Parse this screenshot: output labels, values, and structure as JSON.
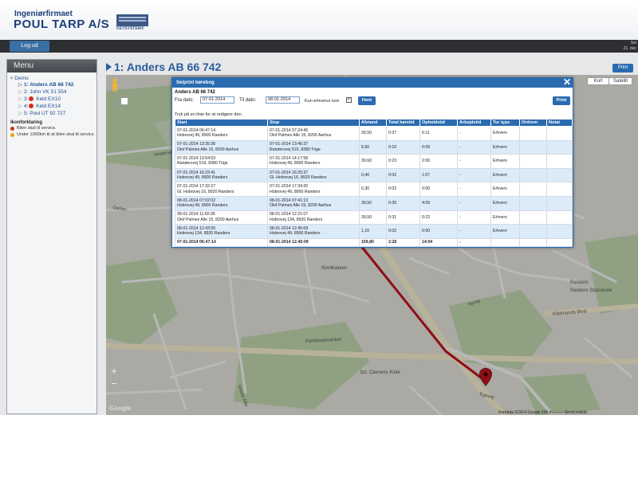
{
  "header": {
    "brand_line1": "Ingeniørfirmaet",
    "brand_line2": "POUL TARP A/S",
    "keysystem_label": "KEYSYSTEM®"
  },
  "topnav": {
    "logout_label": "Log ud",
    "user_line1": "Sel",
    "user_line2": "21. dec"
  },
  "sidebar": {
    "title": "Menu",
    "root_label": "Demo",
    "items": [
      {
        "prefix": "1:",
        "label": "Anders AB 66 742",
        "warning": false
      },
      {
        "prefix": "2:",
        "label": "John VK 51 554",
        "warning": false
      },
      {
        "prefix": "3:",
        "label": "Keld EX10",
        "warning": true
      },
      {
        "prefix": "4:",
        "label": "Keld EX14",
        "warning": true
      },
      {
        "prefix": "5:",
        "label": "Poul UT 92 727",
        "warning": false
      }
    ],
    "legend_title": "Ikonforklaring",
    "legend_items": [
      {
        "label": "Bilen skal til service.",
        "color": "#d52b1e"
      },
      {
        "label": "Under 1000km til at bilen skal til service.",
        "color": "#e3a21a"
      }
    ]
  },
  "page": {
    "title": "1: Anders AB 66 742",
    "print_label": "Print"
  },
  "map": {
    "type_map": "Kort",
    "type_satellite": "Satellit",
    "zoom_in": "+",
    "zoom_out": "−",
    "google_label": "Google",
    "attribution": "Kortdata ©2014 Google   100 m ⸻   Servicevilkår",
    "labels": [
      {
        "text": "Vestervangen"
      },
      {
        "text": "Gørlev"
      },
      {
        "text": "Randers"
      },
      {
        "text": "Nordbakken"
      },
      {
        "text": "Randers Statsskole"
      },
      {
        "text": "Rådmands Blvd."
      },
      {
        "text": "Parkboulevarden"
      },
      {
        "text": "Sct. Clemens Kirke"
      },
      {
        "text": "Langgade"
      },
      {
        "text": "Vester Alle"
      },
      {
        "text": "Nyvej"
      },
      {
        "text": "Egevej"
      }
    ]
  },
  "modal": {
    "title": "Se/print kørebog",
    "close_label": "✕",
    "vehicle": "Anders AB 66 742",
    "from_label": "Fra dato:",
    "from_value": "07-01-2014",
    "to_label": "Til dato:",
    "to_value": "08-01-2014",
    "only_business_label": "Kun erhvervs ture",
    "only_business_checked": "✓",
    "fetch_label": "Hent",
    "print_label": "Print",
    "instruction": "Tryk på en linie for at redigere den.",
    "columns": [
      "Start",
      "Stop",
      "Afstand",
      "Total køretid",
      "Opholdstid",
      "Arbejdstid",
      "Tur type",
      "Ordrenr",
      "Notat"
    ],
    "rows": [
      {
        "start_time": "07-01-2014 06:47:14",
        "start_addr": "Hobrovej 49, 8900 Randers",
        "stop_time": "07-01-2014 07:24:45",
        "stop_addr": "Olof Palmes Alle 15, 8200 Aarhus",
        "distance": "39,50",
        "drive_time": "0:37",
        "stay_time": "6:11",
        "work_time": "-",
        "trip_type": "Erhverv",
        "order_no": "",
        "note": ""
      },
      {
        "start_time": "07-01-2014 13:35:36",
        "start_addr": "Olof Palmes Alle 15, 8200 Aarhus",
        "stop_time": "07-01-2014 13:45:37",
        "stop_addr": "Randersvej 519, 8380 Trige",
        "distance": "8,90",
        "drive_time": "0:10",
        "stay_time": "0:09",
        "work_time": "-",
        "trip_type": "Erhverv",
        "order_no": "",
        "note": ""
      },
      {
        "start_time": "07-01-2014 13:54:53",
        "start_addr": "Randersvej 519, 8380 Trige",
        "stop_time": "07-01-2014 14:17:58",
        "stop_addr": "Hobrovej 49, 8900 Randers",
        "distance": "30,60",
        "drive_time": "0:23",
        "stay_time": "2:06",
        "work_time": "-",
        "trip_type": "Erhverv",
        "order_no": "",
        "note": ""
      },
      {
        "start_time": "07-01-2014 16:23:41",
        "start_addr": "Hobrovej 49, 8900 Randers",
        "stop_time": "07-01-2014 16:25:37",
        "stop_addr": "Gl. Hobrovej 16, 8920 Randers",
        "distance": "0,40",
        "drive_time": "0:02",
        "stay_time": "1:07",
        "work_time": "-",
        "trip_type": "Erhverv",
        "order_no": "",
        "note": ""
      },
      {
        "start_time": "07-01-2014 17:32:27",
        "start_addr": "Gl. Hobrovej 16, 8920 Randers",
        "stop_time": "07-01-2014 17:34:20",
        "stop_addr": "Hobrovej 49, 8900 Randers",
        "distance": "0,30",
        "drive_time": "0:02",
        "stay_time": "0:00",
        "work_time": "-",
        "trip_type": "Erhverv",
        "order_no": "",
        "note": ""
      },
      {
        "start_time": "08-01-2014 07:02:02",
        "start_addr": "Hobrovej 49, 8900 Randers",
        "stop_time": "08-01-2014 07:41:13",
        "stop_addr": "Olof Palmes Alle 15, 8200 Aarhus",
        "distance": "39,50",
        "drive_time": "0:39",
        "stay_time": "4:09",
        "work_time": "-",
        "trip_type": "Erhverv",
        "order_no": "",
        "note": ""
      },
      {
        "start_time": "08-01-2014 11:50:36",
        "start_addr": "Olof Palmes Alle 15, 8200 Aarhus",
        "stop_time": "08-01-2014 12:21:07",
        "stop_addr": "Hobrovej 134, 8920 Randers",
        "distance": "39,50",
        "drive_time": "0:31",
        "stay_time": "0:22",
        "work_time": "-",
        "trip_type": "Erhverv",
        "order_no": "",
        "note": ""
      },
      {
        "start_time": "08-01-2014 12:43:05",
        "start_addr": "Hobrovej 134, 8920 Randers",
        "stop_time": "08-01-2014 12:45:09",
        "stop_addr": "Hobrovej 49, 8900 Randers",
        "distance": "1,10",
        "drive_time": "0:02",
        "stay_time": "0:00",
        "work_time": "-",
        "trip_type": "Erhverv",
        "order_no": "",
        "note": ""
      }
    ],
    "total": {
      "start": "07-01-2014 06:47:14",
      "stop": "08-01-2014 12:45:09",
      "distance": "159,80",
      "drive_time": "2:26",
      "stay_time": "14:04",
      "work_time": "-"
    }
  },
  "colors": {
    "brand_blue": "#1d3f7c",
    "accent_blue": "#2a6bb0",
    "warning_red": "#d52b1e",
    "route_red": "#c8141e"
  }
}
